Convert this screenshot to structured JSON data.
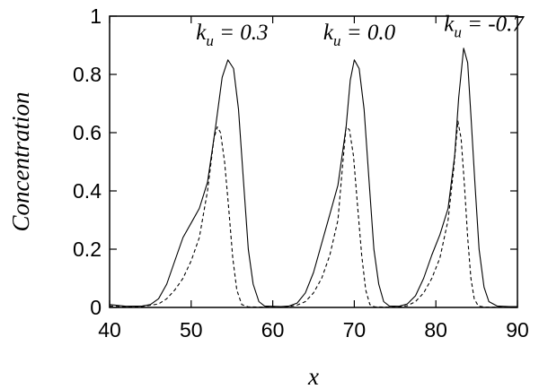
{
  "chart_data": {
    "type": "line",
    "xlabel": "x",
    "ylabel": "Concentration",
    "xlim": [
      40,
      90
    ],
    "ylim": [
      0,
      1
    ],
    "x_ticks": [
      "40",
      "50",
      "60",
      "70",
      "80",
      "90"
    ],
    "y_ticks": [
      "0",
      "0.2",
      "0.4",
      "0.6",
      "0.8",
      "1"
    ],
    "grid": false,
    "annotations": [
      {
        "base": "k",
        "sub": "u",
        "rest": " = 0.3",
        "x": 50.6,
        "y": 0.92
      },
      {
        "base": "k",
        "sub": "u",
        "rest": " = 0.0",
        "x": 66.2,
        "y": 0.92
      },
      {
        "base": "k",
        "sub": "u",
        "rest": " = -0.7",
        "x": 81.0,
        "y": 0.95
      }
    ],
    "series": [
      {
        "style": "solid",
        "points": [
          [
            40,
            0.01
          ],
          [
            42,
            0.004
          ],
          [
            44,
            0.005
          ],
          [
            45,
            0.01
          ],
          [
            46,
            0.03
          ],
          [
            47,
            0.08
          ],
          [
            48,
            0.16
          ],
          [
            49,
            0.24
          ],
          [
            50,
            0.29
          ],
          [
            51,
            0.34
          ],
          [
            52,
            0.43
          ],
          [
            53,
            0.62
          ],
          [
            53.8,
            0.79
          ],
          [
            54.5,
            0.85
          ],
          [
            55.2,
            0.82
          ],
          [
            55.8,
            0.68
          ],
          [
            56.4,
            0.44
          ],
          [
            57,
            0.2
          ],
          [
            57.6,
            0.08
          ],
          [
            58.3,
            0.02
          ],
          [
            59,
            0.005
          ],
          [
            61,
            0.003
          ],
          [
            62,
            0.005
          ],
          [
            63,
            0.015
          ],
          [
            64,
            0.05
          ],
          [
            65,
            0.12
          ],
          [
            66,
            0.22
          ],
          [
            67,
            0.32
          ],
          [
            68,
            0.42
          ],
          [
            69,
            0.62
          ],
          [
            69.5,
            0.78
          ],
          [
            70,
            0.85
          ],
          [
            70.6,
            0.82
          ],
          [
            71.2,
            0.68
          ],
          [
            71.8,
            0.44
          ],
          [
            72.4,
            0.2
          ],
          [
            73,
            0.08
          ],
          [
            73.6,
            0.02
          ],
          [
            74.3,
            0.005
          ],
          [
            75.5,
            0.004
          ],
          [
            76.5,
            0.012
          ],
          [
            77.5,
            0.04
          ],
          [
            78.5,
            0.1
          ],
          [
            79.5,
            0.18
          ],
          [
            80.5,
            0.25
          ],
          [
            81.5,
            0.34
          ],
          [
            82.3,
            0.52
          ],
          [
            82.8,
            0.72
          ],
          [
            83.4,
            0.89
          ],
          [
            83.9,
            0.84
          ],
          [
            84.3,
            0.66
          ],
          [
            84.8,
            0.42
          ],
          [
            85.3,
            0.2
          ],
          [
            85.9,
            0.07
          ],
          [
            86.5,
            0.02
          ],
          [
            87.5,
            0.005
          ],
          [
            89,
            0.003
          ],
          [
            90,
            0.003
          ]
        ]
      },
      {
        "style": "dashed",
        "points": [
          [
            40,
            0.005
          ],
          [
            42,
            0.002
          ],
          [
            44,
            0.003
          ],
          [
            46,
            0.012
          ],
          [
            47,
            0.03
          ],
          [
            48,
            0.06
          ],
          [
            49,
            0.1
          ],
          [
            50,
            0.16
          ],
          [
            51,
            0.24
          ],
          [
            52,
            0.4
          ],
          [
            52.8,
            0.58
          ],
          [
            53.2,
            0.62
          ],
          [
            53.6,
            0.6
          ],
          [
            54.1,
            0.5
          ],
          [
            54.6,
            0.34
          ],
          [
            55.1,
            0.17
          ],
          [
            55.6,
            0.06
          ],
          [
            56.2,
            0.01
          ],
          [
            57,
            0.002
          ],
          [
            60,
            0.001
          ],
          [
            62,
            0.003
          ],
          [
            63,
            0.008
          ],
          [
            64,
            0.02
          ],
          [
            65,
            0.05
          ],
          [
            66,
            0.1
          ],
          [
            67,
            0.18
          ],
          [
            68,
            0.3
          ],
          [
            68.6,
            0.5
          ],
          [
            69,
            0.62
          ],
          [
            69.4,
            0.61
          ],
          [
            69.9,
            0.52
          ],
          [
            70.4,
            0.35
          ],
          [
            70.9,
            0.18
          ],
          [
            71.4,
            0.06
          ],
          [
            71.9,
            0.01
          ],
          [
            72.5,
            0.002
          ],
          [
            75,
            0.001
          ],
          [
            76.5,
            0.006
          ],
          [
            77.5,
            0.02
          ],
          [
            78.5,
            0.05
          ],
          [
            79.5,
            0.1
          ],
          [
            80.5,
            0.17
          ],
          [
            81.5,
            0.3
          ],
          [
            82.2,
            0.48
          ],
          [
            82.7,
            0.64
          ],
          [
            83.1,
            0.58
          ],
          [
            83.5,
            0.42
          ],
          [
            83.9,
            0.24
          ],
          [
            84.3,
            0.1
          ],
          [
            84.7,
            0.03
          ],
          [
            85.2,
            0.005
          ],
          [
            86,
            0.001
          ],
          [
            90,
            0.001
          ]
        ]
      }
    ]
  }
}
